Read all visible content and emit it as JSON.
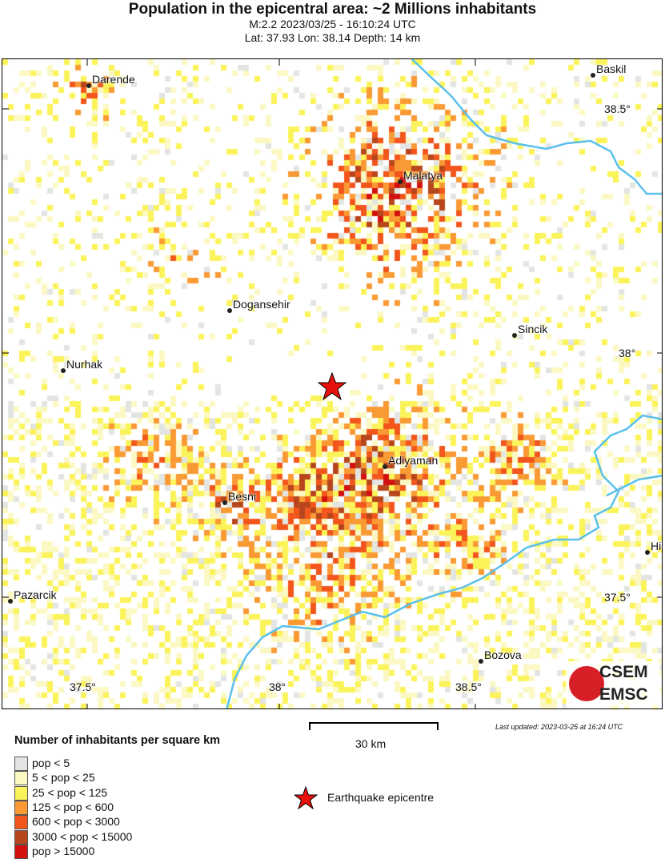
{
  "header": {
    "title": "Population in the epicentral area: ~2 Millions inhabitants",
    "line1": "M:2.2 2023/03/25 - 16:10:24 UTC",
    "line2": "Lat: 37.93 Lon: 38.14 Depth: 14 km"
  },
  "map": {
    "cities": [
      {
        "name": "Darende"
      },
      {
        "name": "Baskil"
      },
      {
        "name": "Malatya"
      },
      {
        "name": "Dogansehir"
      },
      {
        "name": "Sincik"
      },
      {
        "name": "Nurhak"
      },
      {
        "name": "Adiyaman"
      },
      {
        "name": "Besni"
      },
      {
        "name": "Hi"
      },
      {
        "name": "Pazarcik"
      },
      {
        "name": "Bozova"
      }
    ],
    "lat_ticks": [
      "38.5°",
      "38°",
      "37.5°"
    ],
    "lon_ticks": [
      "37.5°",
      "38°",
      "38.5°"
    ],
    "epicentre": {
      "lat": 37.93,
      "lon": 38.14
    },
    "river_color": "#5bc0eb"
  },
  "logo": {
    "top": "CSEM",
    "bottom": "EMSC"
  },
  "scale": {
    "label": "30 km"
  },
  "updated": "Last updated: 2023-03-25 at 16:24 UTC",
  "legend": {
    "title": "Number of inhabitants per square km",
    "items": [
      {
        "label": "pop < 5",
        "color": "#e3e5e2"
      },
      {
        "label": "5 < pop < 25",
        "color": "#fbf8c4"
      },
      {
        "label": "25 < pop < 125",
        "color": "#fbf35a"
      },
      {
        "label": "125 < pop < 600",
        "color": "#f99a35"
      },
      {
        "label": "600 < pop < 3000",
        "color": "#f2561c"
      },
      {
        "label": "3000 < pop < 15000",
        "color": "#b8461c"
      },
      {
        "label": "pop > 15000",
        "color": "#d2110f"
      }
    ],
    "epicentre_label": "Earthquake epicentre"
  }
}
